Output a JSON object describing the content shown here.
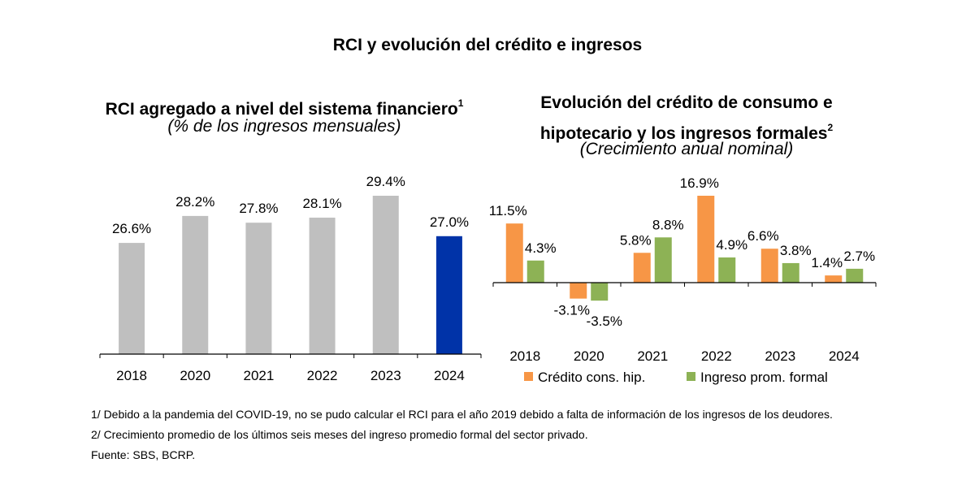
{
  "title": "RCI y evolución del crédito e ingresos",
  "left_chart": {
    "title": "RCI agregado a nivel del sistema financiero",
    "title_sup": "1",
    "subtitle": "(% de los ingresos mensuales)"
  },
  "right_chart": {
    "title_line1": "Evolución del crédito de consumo e",
    "title_line2": "hipotecario y los ingresos formales",
    "title_sup": "2",
    "subtitle": "(Crecimiento anual nominal)"
  },
  "chart_data": [
    {
      "type": "bar",
      "categories": [
        "2018",
        "2020",
        "2021",
        "2022",
        "2023",
        "2024"
      ],
      "values": [
        26.6,
        28.2,
        27.8,
        28.1,
        29.4,
        27.0
      ],
      "labels": [
        "26.6%",
        "28.2%",
        "27.8%",
        "28.1%",
        "29.4%",
        "27.0%"
      ],
      "colors": [
        "#bfbfbf",
        "#bfbfbf",
        "#bfbfbf",
        "#bfbfbf",
        "#bfbfbf",
        "#0033a8"
      ],
      "ylim": [
        20,
        30
      ]
    },
    {
      "type": "bar",
      "categories": [
        "2018",
        "2020",
        "2021",
        "2022",
        "2023",
        "2024"
      ],
      "series": [
        {
          "name": "Crédito cons. hip.",
          "values": [
            11.5,
            -3.1,
            5.8,
            16.9,
            6.6,
            1.4
          ],
          "labels": [
            "11.5%",
            "-3.1%",
            "5.8%",
            "16.9%",
            "6.6%",
            "1.4%"
          ],
          "color": "#f79646"
        },
        {
          "name": "Ingreso prom. formal",
          "values": [
            4.3,
            -3.5,
            8.8,
            4.9,
            3.8,
            2.7
          ],
          "labels": [
            "4.3%",
            "-3.5%",
            "8.8%",
            "4.9%",
            "3.8%",
            "2.7%"
          ],
          "color": "#8db255"
        }
      ],
      "legend": "bottom"
    }
  ],
  "notes": [
    "1/ Debido a la pandemia del COVID-19, no se pudo calcular el RCI para el año 2019 debido a falta de información de los ingresos de los deudores.",
    "2/ Crecimiento promedio de los últimos seis meses del ingreso promedio formal del sector privado.",
    "Fuente: SBS, BCRP."
  ]
}
